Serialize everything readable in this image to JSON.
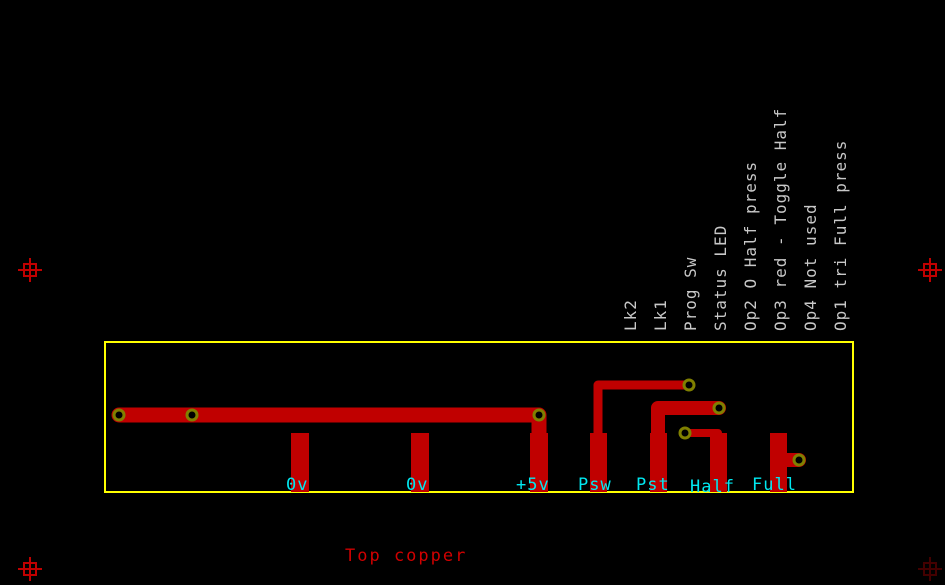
{
  "colors": {
    "background": "#000000",
    "copper": "#c00000",
    "outline": "#ffff00",
    "pin_label": "#00e8f0",
    "silk_label": "#c8c8c8",
    "via": "#808000",
    "marker": "#c00000"
  },
  "header_labels": [
    "Lk2",
    "Lk1",
    "Prog Sw",
    "Status LED",
    "Op2 O Half press",
    "Op3 red - Toggle Half",
    "Op4 Not used",
    "Op1 tri Full press"
  ],
  "pin_labels": [
    "0v",
    "0v",
    "+5v",
    "Psw",
    "Pst",
    "Half",
    "Full"
  ],
  "layer_name": "Top copper",
  "markers": [
    "crosshair-marker",
    "crosshair-marker",
    "crosshair-marker",
    "crosshair-marker"
  ]
}
